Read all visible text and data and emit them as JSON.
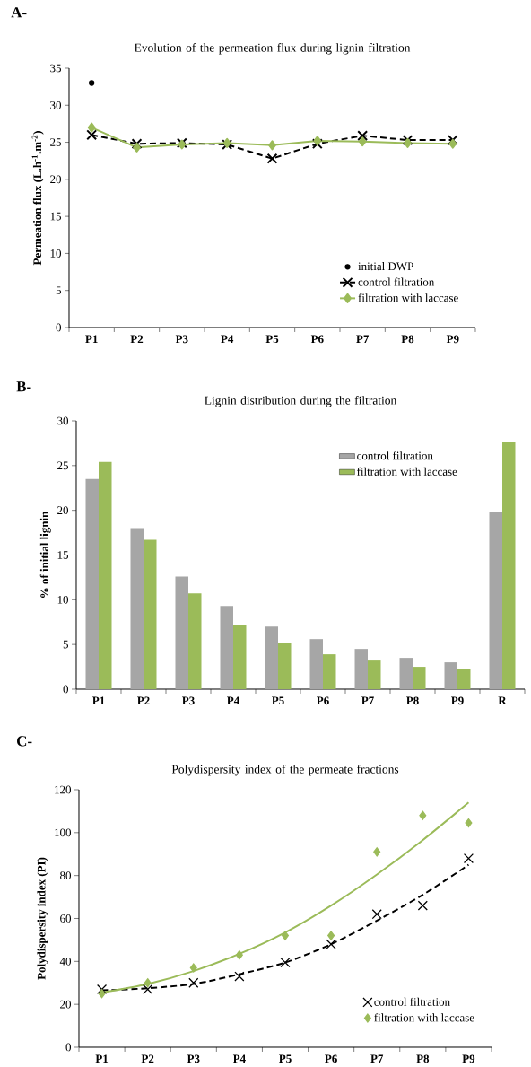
{
  "chart_data": [
    {
      "type": "line",
      "title": "Evolution of the permeation flux during lignin filtration",
      "ylabel": "Permeation flux (L.h$^{-1}$.m$^{-2}$)",
      "annotations": [
        "A-"
      ],
      "categories": [
        "P1",
        "P2",
        "P3",
        "P4",
        "P5",
        "P6",
        "P7",
        "P8",
        "P9"
      ],
      "series": [
        {
          "name": "initial DWP",
          "type": "scatter",
          "color": "#000000",
          "marker": "circle",
          "values": [
            33,
            null,
            null,
            null,
            null,
            null,
            null,
            null,
            null
          ]
        },
        {
          "name": "control filtration",
          "color": "#000000",
          "marker": "cross",
          "line_style": "dashed",
          "values": [
            26,
            24.8,
            24.9,
            24.7,
            22.8,
            24.8,
            25.9,
            25.3,
            25.3
          ]
        },
        {
          "name": "filtration with laccase",
          "color": "#9bbb59",
          "marker": "diamond",
          "line_style": "solid",
          "values": [
            27,
            24.3,
            24.7,
            24.9,
            24.6,
            25.2,
            25.1,
            24.9,
            24.8
          ]
        }
      ],
      "ylim": [
        0,
        35
      ],
      "yticks": [
        0,
        5,
        10,
        15,
        20,
        25,
        30,
        35
      ],
      "legend": "bottom right"
    },
    {
      "type": "bar",
      "title": "Lignin distribution during the filtration",
      "ylabel": "% of initial lignin",
      "annotations": [
        "B-"
      ],
      "categories": [
        "P1",
        "P2",
        "P3",
        "P4",
        "P5",
        "P6",
        "P7",
        "P8",
        "P9",
        "R"
      ],
      "series": [
        {
          "name": "control filtration",
          "color": "#a6a6a6",
          "values": [
            23.5,
            18,
            12.6,
            9.3,
            7.0,
            5.6,
            4.5,
            3.5,
            3.0,
            19.8
          ]
        },
        {
          "name": "filtration with laccase",
          "color": "#9bbb59",
          "values": [
            25.4,
            16.7,
            10.7,
            7.2,
            5.2,
            3.9,
            3.2,
            2.5,
            2.3,
            27.7
          ]
        }
      ],
      "ylim": [
        0,
        30
      ],
      "yticks": [
        0,
        5,
        10,
        15,
        20,
        25,
        30
      ],
      "legend": "top right"
    },
    {
      "type": "scatter",
      "title": "Polydispersity index of the permeate fractions",
      "ylabel": "Polydispersity index (PI)",
      "annotations": [
        "C-"
      ],
      "categories": [
        "P1",
        "P2",
        "P3",
        "P4",
        "P5",
        "P6",
        "P7",
        "P8",
        "P9"
      ],
      "series": [
        {
          "name": "control filtration",
          "color": "#000000",
          "marker": "cross",
          "values": [
            27,
            27,
            30,
            33,
            39.5,
            48,
            62,
            66,
            88
          ]
        },
        {
          "name": "filtration with laccase",
          "color": "#9bbb59",
          "marker": "diamond",
          "values": [
            25,
            30,
            37,
            43,
            52,
            52,
            91,
            108,
            104.5
          ]
        },
        {
          "type": "line",
          "color": "#000000",
          "marker": "none",
          "line_style": "dashed",
          "values": [
            26.5,
            27.5,
            29.5,
            34,
            39.5,
            48,
            59,
            71,
            85
          ]
        },
        {
          "type": "line",
          "color": "#9bbb59",
          "marker": "none",
          "line_style": "solid",
          "values": [
            25.5,
            29.5,
            35.5,
            43.5,
            53.5,
            66,
            80.5,
            96.5,
            114
          ]
        }
      ],
      "ylim": [
        0,
        120
      ],
      "yticks": [
        0,
        20,
        40,
        60,
        80,
        100,
        120
      ],
      "legend": "bottom right"
    }
  ]
}
